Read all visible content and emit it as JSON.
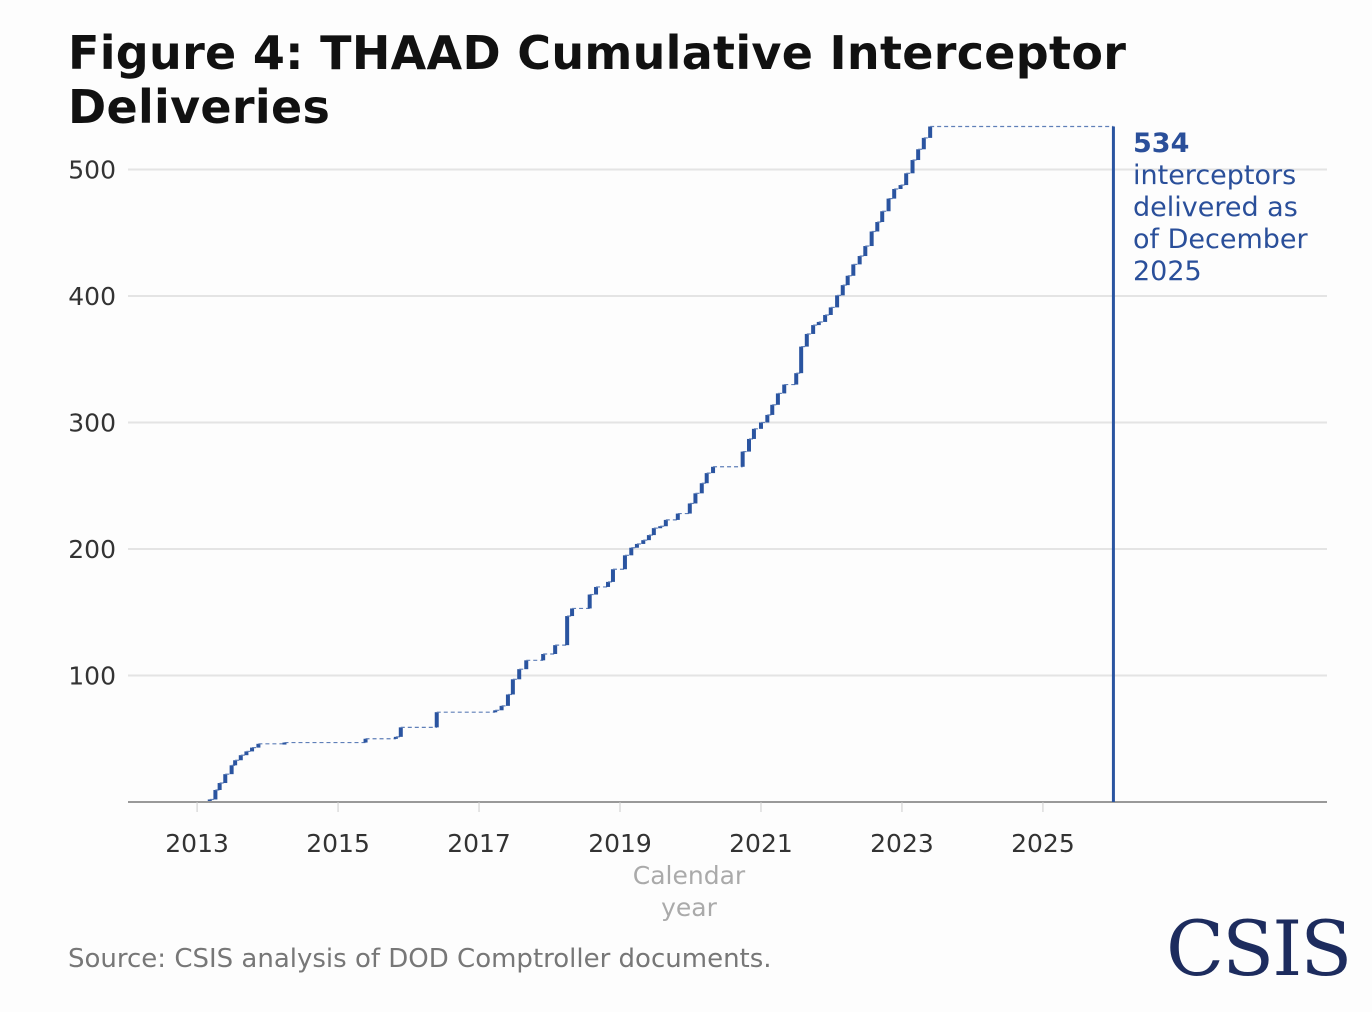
{
  "title": "Figure 4: THAAD Cumulative Interceptor Deliveries",
  "annotation": {
    "value": "534",
    "text": "interceptors delivered as of December 2025"
  },
  "source": "Source: CSIS analysis of DOD Comptroller documents.",
  "logo": "CSIS",
  "colors": {
    "series": "#2a54a0",
    "grid": "#e4e4e4",
    "axis": "#999999"
  },
  "chart_data": {
    "type": "line",
    "step": true,
    "title": "Figure 4: THAAD Cumulative Interceptor Deliveries",
    "xlabel": "Calendar year",
    "ylabel": "",
    "xlim": [
      2012.02,
      2029.03
    ],
    "ylim": [
      0,
      534
    ],
    "x_ticks": [
      "2013",
      "2015",
      "2017",
      "2019",
      "2021",
      "2023",
      "2025"
    ],
    "y_ticks": [
      "100",
      "200",
      "300",
      "400",
      "500"
    ],
    "grid": true,
    "marker_year": 2026,
    "points": [
      [
        2012.45,
        0
      ],
      [
        2013.18,
        2
      ],
      [
        2013.26,
        9.5
      ],
      [
        2013.32,
        15
      ],
      [
        2013.4,
        22
      ],
      [
        2013.49,
        29
      ],
      [
        2013.54,
        33
      ],
      [
        2013.62,
        37
      ],
      [
        2013.7,
        40
      ],
      [
        2013.78,
        43
      ],
      [
        2013.87,
        46
      ],
      [
        2014.24,
        47
      ],
      [
        2015.39,
        50
      ],
      [
        2015.82,
        51.5
      ],
      [
        2015.89,
        59
      ],
      [
        2016.4,
        71
      ],
      [
        2017.23,
        72.5
      ],
      [
        2017.32,
        76
      ],
      [
        2017.41,
        85
      ],
      [
        2017.48,
        97
      ],
      [
        2017.57,
        105
      ],
      [
        2017.67,
        112
      ],
      [
        2017.91,
        117
      ],
      [
        2018.08,
        124
      ],
      [
        2018.25,
        147
      ],
      [
        2018.32,
        153
      ],
      [
        2018.57,
        164
      ],
      [
        2018.66,
        170
      ],
      [
        2018.83,
        174
      ],
      [
        2018.9,
        184
      ],
      [
        2019.07,
        195
      ],
      [
        2019.16,
        201
      ],
      [
        2019.24,
        204
      ],
      [
        2019.33,
        207
      ],
      [
        2019.41,
        211
      ],
      [
        2019.48,
        216.5
      ],
      [
        2019.57,
        218
      ],
      [
        2019.65,
        223
      ],
      [
        2019.82,
        228
      ],
      [
        2019.99,
        236
      ],
      [
        2020.07,
        244
      ],
      [
        2020.16,
        252
      ],
      [
        2020.23,
        260
      ],
      [
        2020.32,
        265
      ],
      [
        2020.74,
        277
      ],
      [
        2020.83,
        287
      ],
      [
        2020.9,
        295
      ],
      [
        2021.0,
        300
      ],
      [
        2021.09,
        306
      ],
      [
        2021.16,
        314
      ],
      [
        2021.24,
        323
      ],
      [
        2021.33,
        330
      ],
      [
        2021.5,
        339
      ],
      [
        2021.57,
        360
      ],
      [
        2021.65,
        370
      ],
      [
        2021.74,
        377
      ],
      [
        2021.82,
        379.5
      ],
      [
        2021.91,
        385
      ],
      [
        2021.99,
        391
      ],
      [
        2022.08,
        400.5
      ],
      [
        2022.16,
        408.6
      ],
      [
        2022.23,
        416
      ],
      [
        2022.31,
        425
      ],
      [
        2022.4,
        431.6
      ],
      [
        2022.48,
        439.5
      ],
      [
        2022.57,
        451
      ],
      [
        2022.65,
        458.5
      ],
      [
        2022.72,
        467
      ],
      [
        2022.81,
        477
      ],
      [
        2022.89,
        484.6
      ],
      [
        2022.98,
        487.7
      ],
      [
        2023.06,
        497
      ],
      [
        2023.15,
        507.5
      ],
      [
        2023.23,
        516
      ],
      [
        2023.31,
        525
      ],
      [
        2023.4,
        534
      ],
      [
        2026.0,
        534
      ]
    ]
  }
}
